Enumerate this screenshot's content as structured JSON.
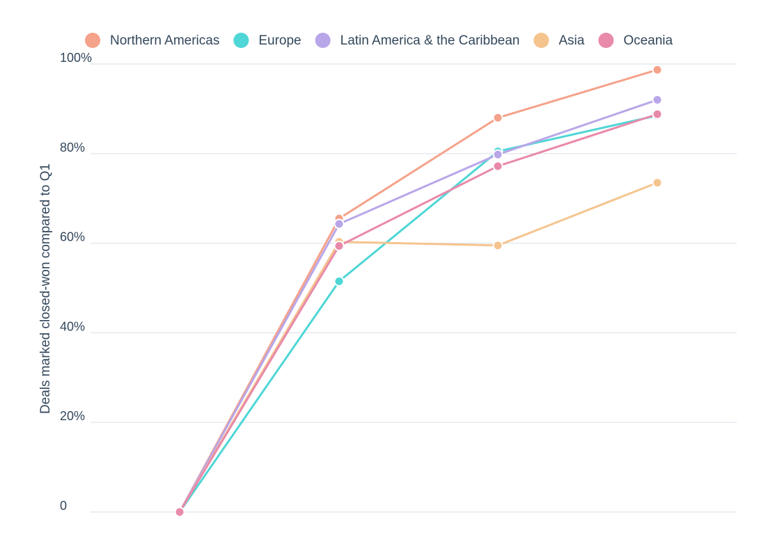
{
  "chart_data": {
    "type": "line",
    "title": "",
    "xlabel": "",
    "ylabel": "Deals marked closed-won compared to Q1",
    "x": [
      1,
      2,
      3,
      4
    ],
    "ylim": [
      0,
      100
    ],
    "yticks": [
      0,
      20,
      40,
      60,
      80,
      100
    ],
    "ytick_labels": [
      "0",
      "20%",
      "40%",
      "60%",
      "80%",
      "100%"
    ],
    "grid": true,
    "legend_position": "top",
    "series": [
      {
        "name": "Northern Americas",
        "color": "#f5a28a",
        "values": [
          0,
          65.5,
          88,
          98.7
        ]
      },
      {
        "name": "Europe",
        "color": "#4fd6d6",
        "values": [
          0,
          51.5,
          80.5,
          88.5
        ]
      },
      {
        "name": "Latin America & the Caribbean",
        "color": "#b9a6e8",
        "values": [
          0,
          64.3,
          79.8,
          92
        ]
      },
      {
        "name": "Asia",
        "color": "#f5c48e",
        "values": [
          0,
          60.3,
          59.5,
          73.5
        ]
      },
      {
        "name": "Oceania",
        "color": "#e98aaa",
        "values": [
          0,
          59.4,
          77.2,
          88.8
        ]
      }
    ]
  }
}
